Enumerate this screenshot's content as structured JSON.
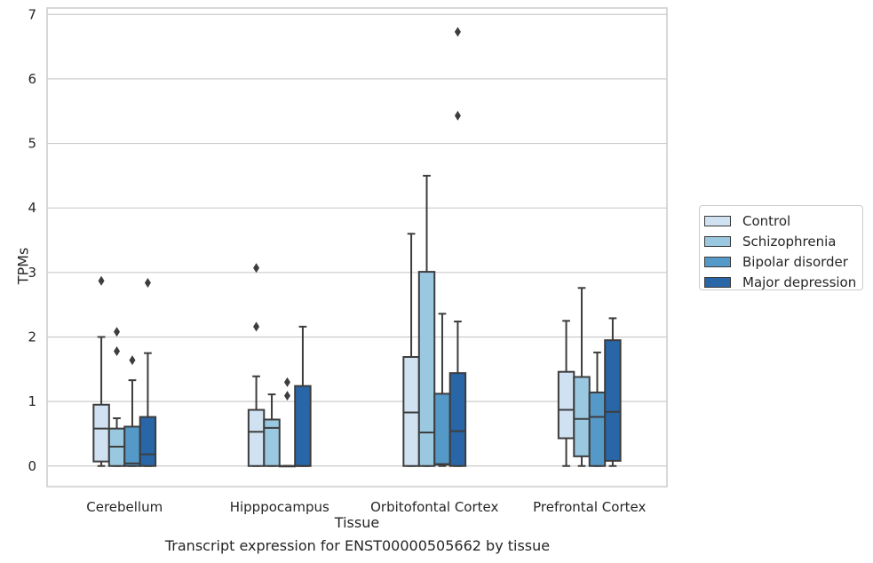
{
  "chart_data": {
    "type": "box",
    "xlabel": "Tissue",
    "ylabel": "TPMs",
    "caption": "Transcript expression for ENST00000505662 by tissue",
    "ylim": [
      -0.32,
      7.1
    ],
    "yticks": [
      0,
      1,
      2,
      3,
      4,
      5,
      6,
      7
    ],
    "grid": true,
    "legend_position": "right",
    "categories": [
      "Cerebellum",
      "Hipppocampus",
      "Orbitofontal Cortex",
      "Prefrontal Cortex"
    ],
    "series": [
      {
        "name": "Control",
        "color": "#d0e1f2",
        "boxes": [
          {
            "whislo": 0.0,
            "q1": 0.07,
            "med": 0.58,
            "q3": 0.95,
            "whishi": 2.0,
            "fliers": [
              2.87
            ]
          },
          {
            "whislo": 0.0,
            "q1": 0.0,
            "med": 0.53,
            "q3": 0.87,
            "whishi": 1.39,
            "fliers": [
              2.16,
              3.07
            ]
          },
          {
            "whislo": 0.0,
            "q1": 0.0,
            "med": 0.83,
            "q3": 1.69,
            "whishi": 3.6,
            "fliers": []
          },
          {
            "whislo": 0.0,
            "q1": 0.43,
            "med": 0.87,
            "q3": 1.46,
            "whishi": 2.25,
            "fliers": []
          }
        ]
      },
      {
        "name": "Schizophrenia",
        "color": "#9ac8e0",
        "boxes": [
          {
            "whislo": 0.0,
            "q1": 0.0,
            "med": 0.3,
            "q3": 0.58,
            "whishi": 0.74,
            "fliers": [
              1.78,
              2.08
            ]
          },
          {
            "whislo": 0.0,
            "q1": 0.0,
            "med": 0.59,
            "q3": 0.72,
            "whishi": 1.11,
            "fliers": []
          },
          {
            "whislo": 0.0,
            "q1": 0.0,
            "med": 0.52,
            "q3": 3.01,
            "whishi": 4.5,
            "fliers": []
          },
          {
            "whislo": 0.0,
            "q1": 0.15,
            "med": 0.73,
            "q3": 1.38,
            "whishi": 2.76,
            "fliers": []
          }
        ]
      },
      {
        "name": "Bipolar disorder",
        "color": "#5599c8",
        "boxes": [
          {
            "whislo": 0.0,
            "q1": 0.0,
            "med": 0.04,
            "q3": 0.61,
            "whishi": 1.33,
            "fliers": [
              1.64
            ]
          },
          {
            "whislo": 0.0,
            "q1": 0.0,
            "med": 0.0,
            "q3": 0.0,
            "whishi": 0.0,
            "fliers": [
              1.09,
              1.3
            ]
          },
          {
            "whislo": 0.0,
            "q1": 0.02,
            "med": 0.03,
            "q3": 1.12,
            "whishi": 2.36,
            "fliers": []
          },
          {
            "whislo": 0.0,
            "q1": 0.0,
            "med": 0.76,
            "q3": 1.14,
            "whishi": 1.76,
            "fliers": []
          }
        ]
      },
      {
        "name": "Major depression",
        "color": "#2866a8",
        "boxes": [
          {
            "whislo": 0.0,
            "q1": 0.0,
            "med": 0.18,
            "q3": 0.76,
            "whishi": 1.75,
            "fliers": [
              2.84
            ]
          },
          {
            "whislo": 0.0,
            "q1": 0.0,
            "med": 0.0,
            "q3": 1.24,
            "whishi": 2.16,
            "fliers": []
          },
          {
            "whislo": 0.0,
            "q1": 0.0,
            "med": 0.54,
            "q3": 1.44,
            "whishi": 2.24,
            "fliers": [
              5.43,
              6.73
            ]
          },
          {
            "whislo": 0.0,
            "q1": 0.08,
            "med": 0.84,
            "q3": 1.95,
            "whishi": 2.29,
            "fliers": []
          }
        ]
      }
    ]
  }
}
